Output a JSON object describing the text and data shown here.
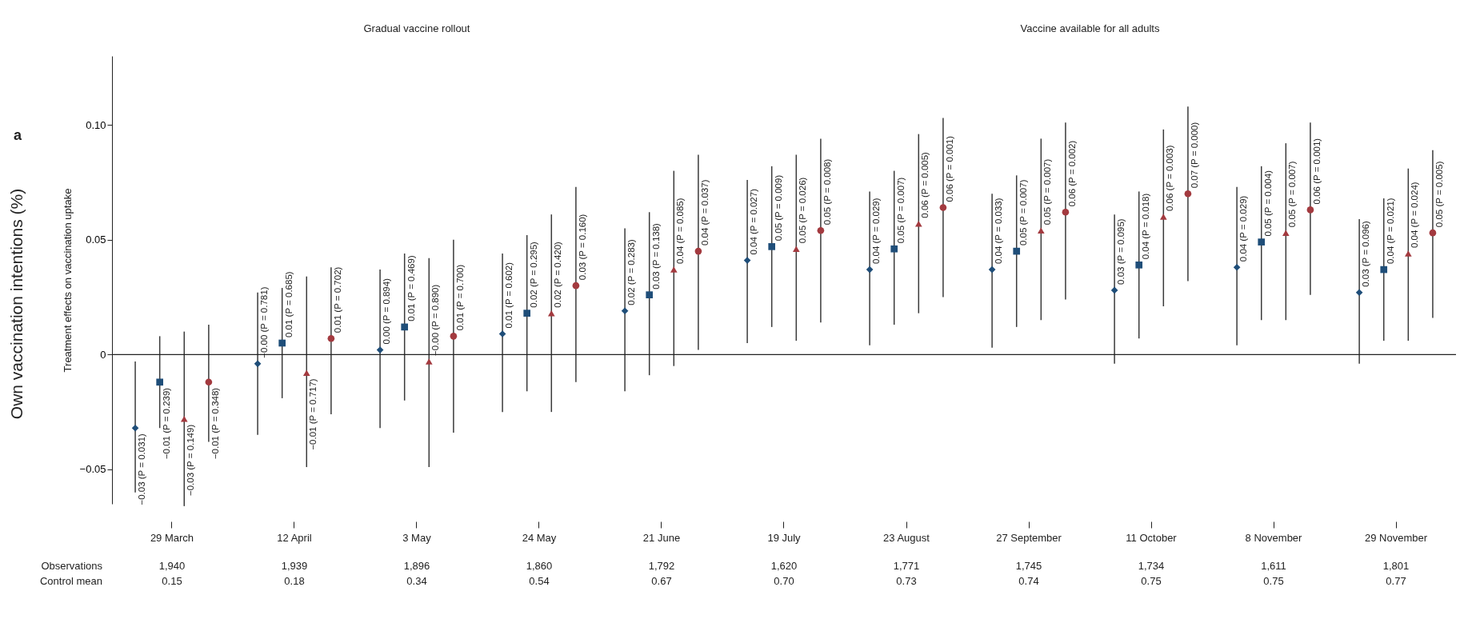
{
  "chart_data": {
    "type": "scatter",
    "title": "Own vaccination intentions (%)",
    "ylabel": "Treatment effects on vaccination uptake",
    "categories": [
      "29 March",
      "12 April",
      "3 May",
      "24 May",
      "21 June",
      "19 July",
      "23 August",
      "27 September",
      "11 October",
      "8 November",
      "29 November"
    ],
    "ylim": [
      -0.065,
      0.13
    ],
    "yticks": [
      {
        "value": -0.05,
        "label": "−0.05"
      },
      0,
      0.05,
      {
        "value": 0.1,
        "label": "0.10"
      }
    ],
    "grid": false,
    "legend": false,
    "series": [
      {
        "color": "#1f4e79",
        "marker": "diamond",
        "values": [
          -0.032,
          -0.004,
          0.002,
          0.009,
          0.019,
          0.041,
          0.037,
          0.037,
          0.028,
          0.038,
          0.027
        ],
        "errors": [
          [
            -0.06,
            -0.003
          ],
          [
            -0.035,
            0.027
          ],
          [
            -0.032,
            0.037
          ],
          [
            -0.025,
            0.044
          ],
          [
            -0.016,
            0.055
          ],
          [
            0.005,
            0.076
          ],
          [
            0.004,
            0.071
          ],
          [
            0.003,
            0.07
          ],
          [
            -0.004,
            0.061
          ],
          [
            0.004,
            0.073
          ],
          [
            -0.004,
            0.059
          ]
        ],
        "value_labels": [
          "−0.03 (P = 0.031)",
          "−0.00 (P = 0.781)",
          "0.00 (P = 0.894)",
          "0.01 (P = 0.602)",
          "0.02 (P = 0.283)",
          "0.04 (P = 0.027)",
          "0.04 (P = 0.029)",
          "0.04 (P = 0.033)",
          "0.03 (P = 0.095)",
          "0.04 (P = 0.029)",
          "0.03 (P = 0.096)"
        ]
      },
      {
        "color": "#1f4e79",
        "marker": "square",
        "values": [
          -0.012,
          0.005,
          0.012,
          0.018,
          0.026,
          0.047,
          0.046,
          0.045,
          0.039,
          0.049,
          0.037
        ],
        "errors": [
          [
            -0.032,
            0.008
          ],
          [
            -0.019,
            0.029
          ],
          [
            -0.02,
            0.044
          ],
          [
            -0.016,
            0.052
          ],
          [
            -0.009,
            0.062
          ],
          [
            0.012,
            0.082
          ],
          [
            0.013,
            0.08
          ],
          [
            0.012,
            0.078
          ],
          [
            0.007,
            0.071
          ],
          [
            0.015,
            0.082
          ],
          [
            0.006,
            0.068
          ]
        ],
        "value_labels": [
          "−0.01 (P = 0.239)",
          "0.01 (P = 0.685)",
          "0.01 (P = 0.469)",
          "0.02 (P = 0.295)",
          "0.03 (P = 0.138)",
          "0.05 (P = 0.009)",
          "0.05 (P = 0.007)",
          "0.05 (P = 0.007)",
          "0.04 (P = 0.018)",
          "0.05 (P = 0.004)",
          "0.04 (P = 0.021)"
        ]
      },
      {
        "color": "#a33a3f",
        "marker": "triangle",
        "values": [
          -0.028,
          -0.008,
          -0.003,
          0.018,
          0.037,
          0.046,
          0.057,
          0.054,
          0.06,
          0.053,
          0.044
        ],
        "errors": [
          [
            -0.066,
            0.01
          ],
          [
            -0.049,
            0.034
          ],
          [
            -0.049,
            0.042
          ],
          [
            -0.025,
            0.061
          ],
          [
            -0.005,
            0.08
          ],
          [
            0.006,
            0.087
          ],
          [
            0.018,
            0.096
          ],
          [
            0.015,
            0.094
          ],
          [
            0.021,
            0.098
          ],
          [
            0.015,
            0.092
          ],
          [
            0.006,
            0.081
          ]
        ],
        "value_labels": [
          "−0.03 (P = 0.149)",
          "−0.01 (P = 0.717)",
          "−0.00 (P = 0.890)",
          "0.02 (P = 0.420)",
          "0.04 (P = 0.085)",
          "0.05 (P = 0.026)",
          "0.06 (P = 0.005)",
          "0.05 (P = 0.007)",
          "0.06 (P = 0.003)",
          "0.05 (P = 0.007)",
          "0.04 (P = 0.024)"
        ]
      },
      {
        "color": "#a33a3f",
        "marker": "circle",
        "values": [
          -0.012,
          0.007,
          0.008,
          0.03,
          0.045,
          0.054,
          0.064,
          0.062,
          0.07,
          0.063,
          0.053
        ],
        "errors": [
          [
            -0.038,
            0.013
          ],
          [
            -0.026,
            0.038
          ],
          [
            -0.034,
            0.05
          ],
          [
            -0.012,
            0.073
          ],
          [
            0.002,
            0.087
          ],
          [
            0.014,
            0.094
          ],
          [
            0.025,
            0.103
          ],
          [
            0.024,
            0.101
          ],
          [
            0.032,
            0.108
          ],
          [
            0.026,
            0.101
          ],
          [
            0.016,
            0.089
          ]
        ],
        "value_labels": [
          "−0.01 (P = 0.348)",
          "0.01 (P = 0.702)",
          "0.01 (P = 0.700)",
          "0.03 (P = 0.160)",
          "0.04 (P = 0.037)",
          "0.05 (P = 0.008)",
          "0.06 (P = 0.001)",
          "0.06 (P = 0.002)",
          "0.07 (P = 0.000)",
          "0.06 (P = 0.001)",
          "0.05 (P = 0.005)"
        ]
      }
    ],
    "ref_lines": [
      {
        "axis": "y",
        "value": 0
      }
    ],
    "annotations": [
      "a",
      "Gradual vaccine rollout",
      "Vaccine available for all adults",
      "Observations",
      "1,940",
      "1,939",
      "1,896",
      "1,860",
      "1,792",
      "1,620",
      "1,771",
      "1,745",
      "1,734",
      "1,611",
      "1,801",
      "Control mean",
      "0.15",
      "0.18",
      "0.34",
      "0.54",
      "0.67",
      "0.70",
      "0.73",
      "0.74",
      "0.75",
      "0.75",
      "0.77"
    ]
  }
}
